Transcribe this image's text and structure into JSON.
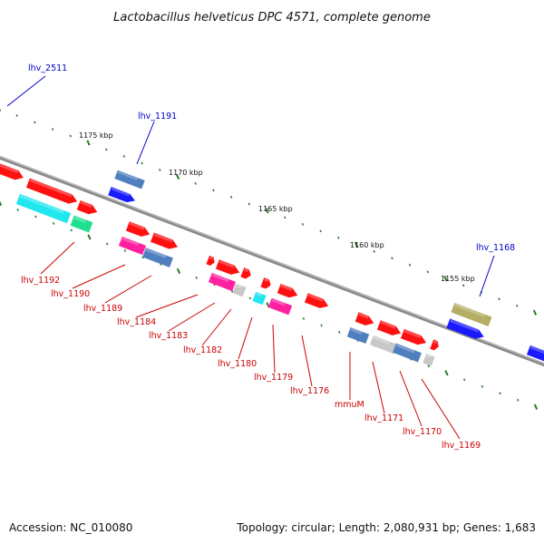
{
  "title": "Lactobacillus helveticus DPC 4571, complete genome",
  "footer": {
    "accession": "Accession: NC_010080",
    "info": "Topology: circular; Length: 2,080,931 bp; Genes: 1,683"
  },
  "ticks": [
    {
      "label": "1175 kbp"
    },
    {
      "label": "1170 kbp"
    },
    {
      "label": "1165 kbp"
    },
    {
      "label": "1160 kbp"
    },
    {
      "label": "1155 kbp"
    }
  ],
  "labels_forward": [
    {
      "name": "lhv_2511"
    },
    {
      "name": "lhv_1191"
    },
    {
      "name": "lhv_1168"
    }
  ],
  "labels_reverse": [
    {
      "name": "lhv_1192"
    },
    {
      "name": "lhv_1190"
    },
    {
      "name": "lhv_1189"
    },
    {
      "name": "lhv_1184"
    },
    {
      "name": "lhv_1183"
    },
    {
      "name": "lhv_1182"
    },
    {
      "name": "lhv_1180"
    },
    {
      "name": "lhv_1179"
    },
    {
      "name": "lhv_1176"
    },
    {
      "name": "mmuM"
    },
    {
      "name": "lhv_1171"
    },
    {
      "name": "lhv_1170"
    },
    {
      "name": "lhv_1169"
    }
  ],
  "colors": {
    "backbone": "#888888",
    "forward_label": "#0000cc",
    "reverse_label": "#cc0000",
    "tick": "#2a7a2a",
    "gene_red": "#ff1010",
    "gene_blue": "#1a1aff",
    "gene_steel": "#4f7fbf",
    "gene_pink": "#ff20a0",
    "gene_cyan": "#20e6f0",
    "gene_teal": "#20e090",
    "gene_grey": "#c8c8c8",
    "gene_olive": "#b4ad63"
  }
}
